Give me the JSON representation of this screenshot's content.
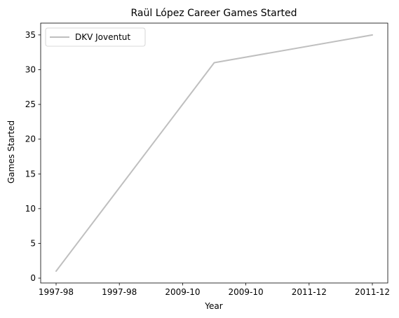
{
  "chart_data": {
    "type": "line",
    "title": "Raül López Career Games Started",
    "xlabel": "Year",
    "ylabel": "Games Started",
    "categories": [
      "1997-98",
      "2009-10",
      "2011-12"
    ],
    "x_tick_labels": [
      "1997-98",
      "1997-98",
      "2009-10",
      "2009-10",
      "2011-12",
      "2011-12"
    ],
    "y_ticks": [
      0,
      5,
      10,
      15,
      20,
      25,
      30,
      35
    ],
    "ylim": [
      -0.7,
      36.7
    ],
    "series": [
      {
        "name": "DKV Joventut",
        "values": [
          1,
          31,
          35
        ],
        "color": "#bfbfbf"
      }
    ],
    "legend": {
      "placement": "top-left"
    },
    "grid": false
  }
}
